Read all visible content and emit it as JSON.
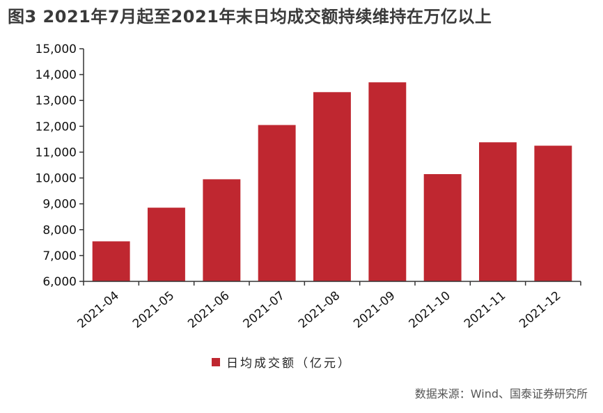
{
  "title": "图3  2021年7月起至2021年末日均成交额持续维持在万亿以上",
  "source": "数据来源：Wind、国泰证券研究所",
  "colors": {
    "bar": "#bf2730",
    "axis": "#333333"
  },
  "chart_data": {
    "type": "bar",
    "categories": [
      "2021-04",
      "2021-05",
      "2021-06",
      "2021-07",
      "2021-08",
      "2021-09",
      "2021-10",
      "2021-11",
      "2021-12"
    ],
    "series": [
      {
        "name": "日均成交额（亿元）",
        "values": [
          7550,
          8850,
          9950,
          12050,
          13320,
          13700,
          10150,
          11380,
          11250
        ]
      }
    ],
    "ylim": [
      6000,
      15000
    ],
    "yticks": [
      6000,
      7000,
      8000,
      9000,
      10000,
      11000,
      12000,
      13000,
      14000,
      15000
    ],
    "ytick_labels": [
      "6,000",
      "7,000",
      "8,000",
      "9,000",
      "10,000",
      "11,000",
      "12,000",
      "13,000",
      "14,000",
      "15,000"
    ],
    "grid": false,
    "legend_position": "bottom-center"
  }
}
